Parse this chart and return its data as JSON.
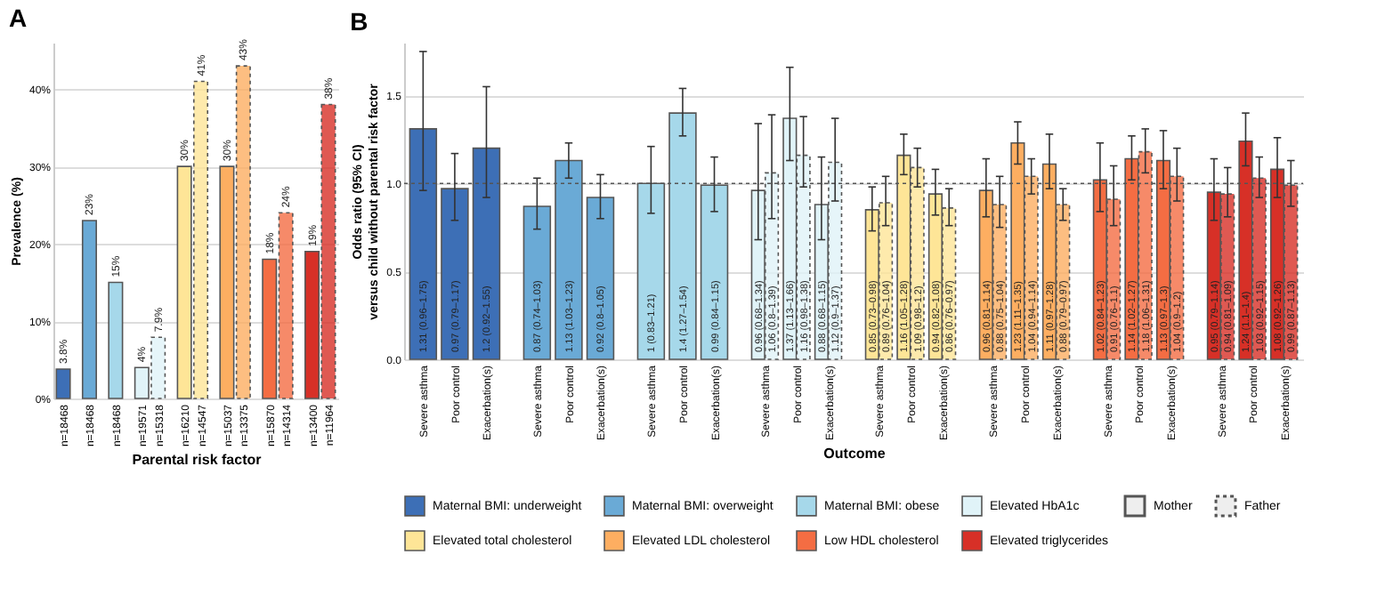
{
  "chart_data": [
    {
      "type": "bar",
      "title": "A",
      "xlabel": "Parental risk factor",
      "ylabel": "Prevalence (%)",
      "grid": "y",
      "ylim": [
        0,
        46
      ],
      "yticks": [
        {
          "value": 0,
          "label": "0%"
        },
        {
          "value": 10,
          "label": "10%"
        },
        {
          "value": 20,
          "label": "20%"
        },
        {
          "value": 30,
          "label": "30%"
        },
        {
          "value": 40,
          "label": "40%"
        }
      ],
      "categories": [
        "n=18468",
        "n=18468",
        "n=18468",
        "n=19571",
        "n=15318",
        "n=16210",
        "n=14547",
        "n=15037",
        "n=13375",
        "n=15870",
        "n=14314",
        "n=13400",
        "n=11964"
      ],
      "series": [
        {
          "colors": [
            "#3d6fb6",
            "#6aaad6",
            "#a6d8ea",
            "#e0f3f8",
            null,
            "#fee597",
            null,
            "#fdae61",
            null,
            "#f46d43",
            null,
            "#d73027",
            null
          ],
          "values": [
            3.8,
            23,
            15,
            4,
            null,
            30,
            null,
            30,
            null,
            18,
            null,
            19,
            null
          ],
          "value_labels": [
            "3.8%",
            "23%",
            "15%",
            "4%",
            null,
            "30%",
            null,
            "30%",
            null,
            "18%",
            null,
            "19%",
            null
          ]
        },
        {
          "line_style": "dotted",
          "colors": [
            null,
            null,
            null,
            null,
            "#e0f3f8",
            null,
            "#fee597",
            null,
            "#fdae61",
            null,
            "#f46d43",
            null,
            "#d73027"
          ],
          "values": [
            null,
            null,
            null,
            null,
            7.9,
            null,
            41,
            null,
            43,
            null,
            24,
            null,
            38
          ],
          "value_labels": [
            null,
            null,
            null,
            null,
            "7.9%",
            null,
            "41%",
            null,
            "43%",
            null,
            "24%",
            null,
            "38%"
          ]
        }
      ]
    },
    {
      "type": "bar",
      "title": "B",
      "legend": "bottom",
      "xlabel": "Outcome",
      "ylabel": "Odds ratio (95% CI)\nversus child without parental risk factor",
      "grid": "y",
      "ylim": [
        0,
        1.8
      ],
      "yticks": [
        {
          "value": 0,
          "label": "0.0"
        },
        {
          "value": 0.5,
          "label": "0.5"
        },
        {
          "value": 1,
          "label": "1.0"
        },
        {
          "value": 1.5,
          "label": "1.5"
        }
      ],
      "ref_lines": [
        {
          "axis": "y",
          "value": 1,
          "line_style": "dotted"
        }
      ],
      "annotations": [
        "Mother",
        "Father"
      ],
      "categories": [
        "Severe asthma",
        "Poor control",
        "Exacerbation(s)",
        "Severe asthma",
        "Poor control",
        "Exacerbation(s)",
        "Severe asthma",
        "Poor control",
        "Exacerbation(s)",
        "Severe asthma",
        "Poor control",
        "Exacerbation(s)",
        "Severe asthma",
        "Poor control",
        "Exacerbation(s)",
        "Severe asthma",
        "Poor control",
        "Exacerbation(s)",
        "Severe asthma",
        "Poor control",
        "Exacerbation(s)",
        "Severe asthma",
        "Poor control",
        "Exacerbation(s)"
      ],
      "series": [
        {
          "name": "Maternal BMI: underweight",
          "color": "#3d6fb6",
          "values": [
            1.31,
            0.97,
            1.2,
            null,
            null,
            null,
            null,
            null,
            null,
            null,
            null,
            null,
            null,
            null,
            null,
            null,
            null,
            null,
            null,
            null,
            null,
            null,
            null,
            null
          ],
          "errors": [
            [
              0.96,
              1.75
            ],
            [
              0.79,
              1.17
            ],
            [
              0.92,
              1.55
            ],
            null,
            null,
            null,
            null,
            null,
            null,
            null,
            null,
            null,
            null,
            null,
            null,
            null,
            null,
            null,
            null,
            null,
            null,
            null,
            null,
            null
          ],
          "value_labels": [
            "1.31 (0.96–1.75)",
            "0.97 (0.79–1.17)",
            "1.2 (0.92–1.55)",
            null,
            null,
            null,
            null,
            null,
            null,
            null,
            null,
            null,
            null,
            null,
            null,
            null,
            null,
            null,
            null,
            null,
            null,
            null,
            null,
            null
          ]
        },
        {
          "name": "Maternal BMI: overweight",
          "color": "#6aaad6",
          "values": [
            null,
            null,
            null,
            0.87,
            1.13,
            0.92,
            null,
            null,
            null,
            null,
            null,
            null,
            null,
            null,
            null,
            null,
            null,
            null,
            null,
            null,
            null,
            null,
            null,
            null
          ],
          "errors": [
            null,
            null,
            null,
            [
              0.74,
              1.03
            ],
            [
              1.03,
              1.23
            ],
            [
              0.8,
              1.05
            ],
            null,
            null,
            null,
            null,
            null,
            null,
            null,
            null,
            null,
            null,
            null,
            null,
            null,
            null,
            null,
            null,
            null,
            null
          ],
          "value_labels": [
            null,
            null,
            null,
            "0.87 (0.74–1.03)",
            "1.13 (1.03–1.23)",
            "0.92 (0.8–1.05)",
            null,
            null,
            null,
            null,
            null,
            null,
            null,
            null,
            null,
            null,
            null,
            null,
            null,
            null,
            null,
            null,
            null,
            null
          ]
        },
        {
          "name": "Maternal BMI: obese",
          "color": "#a6d8ea",
          "values": [
            null,
            null,
            null,
            null,
            null,
            null,
            1,
            1.4,
            0.99,
            null,
            null,
            null,
            null,
            null,
            null,
            null,
            null,
            null,
            null,
            null,
            null,
            null,
            null,
            null
          ],
          "errors": [
            null,
            null,
            null,
            null,
            null,
            null,
            [
              0.83,
              1.21
            ],
            [
              1.27,
              1.54
            ],
            [
              0.84,
              1.15
            ],
            null,
            null,
            null,
            null,
            null,
            null,
            null,
            null,
            null,
            null,
            null,
            null,
            null,
            null,
            null
          ],
          "value_labels": [
            null,
            null,
            null,
            null,
            null,
            null,
            "1 (0.83–1.21)",
            "1.4 (1.27–1.54)",
            "0.99 (0.84–1.15)",
            null,
            null,
            null,
            null,
            null,
            null,
            null,
            null,
            null,
            null,
            null,
            null,
            null,
            null,
            null
          ]
        },
        {
          "name": "Elevated HbA1c",
          "color": "#e0f3f8",
          "values": [
            null,
            null,
            null,
            null,
            null,
            null,
            null,
            null,
            null,
            0.96,
            1.37,
            0.88,
            null,
            null,
            null,
            null,
            null,
            null,
            null,
            null,
            null,
            null,
            null,
            null
          ],
          "errors": [
            null,
            null,
            null,
            null,
            null,
            null,
            null,
            null,
            null,
            [
              0.68,
              1.34
            ],
            [
              1.13,
              1.66
            ],
            [
              0.68,
              1.15
            ],
            null,
            null,
            null,
            null,
            null,
            null,
            null,
            null,
            null,
            null,
            null,
            null
          ],
          "value_labels": [
            null,
            null,
            null,
            null,
            null,
            null,
            null,
            null,
            null,
            "0.96 (0.68–1.34)",
            "1.37 (1.13–1.66)",
            "0.88 (0.68–1.15)",
            null,
            null,
            null,
            null,
            null,
            null,
            null,
            null,
            null,
            null,
            null,
            null
          ]
        },
        {
          "name": "Elevated total cholesterol",
          "color": "#fee597",
          "values": [
            null,
            null,
            null,
            null,
            null,
            null,
            null,
            null,
            null,
            null,
            null,
            null,
            0.85,
            1.16,
            0.94,
            null,
            null,
            null,
            null,
            null,
            null,
            null,
            null,
            null
          ],
          "errors": [
            null,
            null,
            null,
            null,
            null,
            null,
            null,
            null,
            null,
            null,
            null,
            null,
            [
              0.73,
              0.98
            ],
            [
              1.05,
              1.28
            ],
            [
              0.82,
              1.08
            ],
            null,
            null,
            null,
            null,
            null,
            null,
            null,
            null,
            null
          ],
          "value_labels": [
            null,
            null,
            null,
            null,
            null,
            null,
            null,
            null,
            null,
            null,
            null,
            null,
            "0.85 (0.73–0.98)",
            "1.16 (1.05–1.28)",
            "0.94 (0.82–1.08)",
            null,
            null,
            null,
            null,
            null,
            null,
            null,
            null,
            null
          ]
        },
        {
          "name": "Elevated LDL cholesterol",
          "color": "#fdae61",
          "values": [
            null,
            null,
            null,
            null,
            null,
            null,
            null,
            null,
            null,
            null,
            null,
            null,
            null,
            null,
            null,
            0.96,
            1.23,
            1.11,
            null,
            null,
            null,
            null,
            null,
            null
          ],
          "errors": [
            null,
            null,
            null,
            null,
            null,
            null,
            null,
            null,
            null,
            null,
            null,
            null,
            null,
            null,
            null,
            [
              0.81,
              1.14
            ],
            [
              1.11,
              1.35
            ],
            [
              0.97,
              1.28
            ],
            null,
            null,
            null,
            null,
            null,
            null
          ],
          "value_labels": [
            null,
            null,
            null,
            null,
            null,
            null,
            null,
            null,
            null,
            null,
            null,
            null,
            null,
            null,
            null,
            "0.96 (0.81–1.14)",
            "1.23 (1.11–1.35)",
            "1.11 (0.97–1.28)",
            null,
            null,
            null,
            null,
            null,
            null
          ]
        },
        {
          "name": "Low HDL cholesterol",
          "color": "#f46d43",
          "values": [
            null,
            null,
            null,
            null,
            null,
            null,
            null,
            null,
            null,
            null,
            null,
            null,
            null,
            null,
            null,
            null,
            null,
            null,
            1.02,
            1.14,
            1.13,
            null,
            null,
            null
          ],
          "errors": [
            null,
            null,
            null,
            null,
            null,
            null,
            null,
            null,
            null,
            null,
            null,
            null,
            null,
            null,
            null,
            null,
            null,
            null,
            [
              0.84,
              1.23
            ],
            [
              1.02,
              1.27
            ],
            [
              0.97,
              1.3
            ],
            null,
            null,
            null
          ],
          "value_labels": [
            null,
            null,
            null,
            null,
            null,
            null,
            null,
            null,
            null,
            null,
            null,
            null,
            null,
            null,
            null,
            null,
            null,
            null,
            "1.02 (0.84–1.23)",
            "1.14 (1.02–1.27)",
            "1.13 (0.97–1.3)",
            null,
            null,
            null
          ]
        },
        {
          "name": "Elevated triglycerides",
          "color": "#d73027",
          "values": [
            null,
            null,
            null,
            null,
            null,
            null,
            null,
            null,
            null,
            null,
            null,
            null,
            null,
            null,
            null,
            null,
            null,
            null,
            null,
            null,
            null,
            0.95,
            1.24,
            1.08
          ],
          "errors": [
            null,
            null,
            null,
            null,
            null,
            null,
            null,
            null,
            null,
            null,
            null,
            null,
            null,
            null,
            null,
            null,
            null,
            null,
            null,
            null,
            null,
            [
              0.79,
              1.14
            ],
            [
              1.1,
              1.4
            ],
            [
              0.92,
              1.26
            ]
          ],
          "value_labels": [
            null,
            null,
            null,
            null,
            null,
            null,
            null,
            null,
            null,
            null,
            null,
            null,
            null,
            null,
            null,
            null,
            null,
            null,
            null,
            null,
            null,
            "0.95 (0.79–1.14)",
            "1.24 (1.1–1.4)",
            "1.08 (0.92–1.26)"
          ]
        },
        {
          "line_style": "dotted",
          "color": "#e0f3f8",
          "values": [
            null,
            null,
            null,
            null,
            null,
            null,
            null,
            null,
            null,
            1.06,
            1.16,
            1.12,
            null,
            null,
            null,
            null,
            null,
            null,
            null,
            null,
            null,
            null,
            null,
            null
          ],
          "errors": [
            null,
            null,
            null,
            null,
            null,
            null,
            null,
            null,
            null,
            [
              0.8,
              1.39
            ],
            [
              0.98,
              1.38
            ],
            [
              0.9,
              1.37
            ],
            null,
            null,
            null,
            null,
            null,
            null,
            null,
            null,
            null,
            null,
            null,
            null
          ],
          "value_labels": [
            null,
            null,
            null,
            null,
            null,
            null,
            null,
            null,
            null,
            "1.06 (0.8–1.39)",
            "1.16 (0.98–1.38)",
            "1.12 (0.9–1.37)",
            null,
            null,
            null,
            null,
            null,
            null,
            null,
            null,
            null,
            null,
            null,
            null
          ]
        },
        {
          "line_style": "dotted",
          "color": "#fee597",
          "values": [
            null,
            null,
            null,
            null,
            null,
            null,
            null,
            null,
            null,
            null,
            null,
            null,
            0.89,
            1.09,
            0.86,
            null,
            null,
            null,
            null,
            null,
            null,
            null,
            null,
            null
          ],
          "errors": [
            null,
            null,
            null,
            null,
            null,
            null,
            null,
            null,
            null,
            null,
            null,
            null,
            [
              0.76,
              1.04
            ],
            [
              0.98,
              1.2
            ],
            [
              0.76,
              0.97
            ],
            null,
            null,
            null,
            null,
            null,
            null,
            null,
            null,
            null
          ],
          "value_labels": [
            null,
            null,
            null,
            null,
            null,
            null,
            null,
            null,
            null,
            null,
            null,
            null,
            "0.89 (0.76–1.04)",
            "1.09 (0.98–1.2)",
            "0.86 (0.76–0.97)",
            null,
            null,
            null,
            null,
            null,
            null,
            null,
            null,
            null
          ]
        },
        {
          "line_style": "dotted",
          "color": "#fdae61",
          "values": [
            null,
            null,
            null,
            null,
            null,
            null,
            null,
            null,
            null,
            null,
            null,
            null,
            null,
            null,
            null,
            0.88,
            1.04,
            0.88,
            null,
            null,
            null,
            null,
            null,
            null
          ],
          "errors": [
            null,
            null,
            null,
            null,
            null,
            null,
            null,
            null,
            null,
            null,
            null,
            null,
            null,
            null,
            null,
            [
              0.75,
              1.04
            ],
            [
              0.94,
              1.14
            ],
            [
              0.79,
              0.97
            ],
            null,
            null,
            null,
            null,
            null,
            null
          ],
          "value_labels": [
            null,
            null,
            null,
            null,
            null,
            null,
            null,
            null,
            null,
            null,
            null,
            null,
            null,
            null,
            null,
            "0.88 (0.75–1.04)",
            "1.04 (0.94–1.14)",
            "0.88 (0.79–0.97)",
            null,
            null,
            null,
            null,
            null,
            null
          ]
        },
        {
          "line_style": "dotted",
          "color": "#f46d43",
          "values": [
            null,
            null,
            null,
            null,
            null,
            null,
            null,
            null,
            null,
            null,
            null,
            null,
            null,
            null,
            null,
            null,
            null,
            null,
            0.91,
            1.18,
            1.04,
            null,
            null,
            null
          ],
          "errors": [
            null,
            null,
            null,
            null,
            null,
            null,
            null,
            null,
            null,
            null,
            null,
            null,
            null,
            null,
            null,
            null,
            null,
            null,
            [
              0.76,
              1.1
            ],
            [
              1.06,
              1.31
            ],
            [
              0.9,
              1.2
            ],
            null,
            null,
            null
          ],
          "value_labels": [
            null,
            null,
            null,
            null,
            null,
            null,
            null,
            null,
            null,
            null,
            null,
            null,
            null,
            null,
            null,
            null,
            null,
            null,
            "0.91 (0.76–1.1)",
            "1.18 (1.06–1.31)",
            "1.04 (0.9–1.2)",
            null,
            null,
            null
          ]
        },
        {
          "line_style": "dotted",
          "color": "#d73027",
          "values": [
            null,
            null,
            null,
            null,
            null,
            null,
            null,
            null,
            null,
            null,
            null,
            null,
            null,
            null,
            null,
            null,
            null,
            null,
            null,
            null,
            null,
            0.94,
            1.03,
            0.99
          ],
          "errors": [
            null,
            null,
            null,
            null,
            null,
            null,
            null,
            null,
            null,
            null,
            null,
            null,
            null,
            null,
            null,
            null,
            null,
            null,
            null,
            null,
            null,
            [
              0.81,
              1.09
            ],
            [
              0.92,
              1.15
            ],
            [
              0.87,
              1.13
            ]
          ],
          "value_labels": [
            null,
            null,
            null,
            null,
            null,
            null,
            null,
            null,
            null,
            null,
            null,
            null,
            null,
            null,
            null,
            null,
            null,
            null,
            null,
            null,
            null,
            "0.94 (0.81–1.09)",
            "1.03 (0.92–1.15)",
            "0.99 (0.87–1.13)"
          ]
        }
      ]
    }
  ]
}
